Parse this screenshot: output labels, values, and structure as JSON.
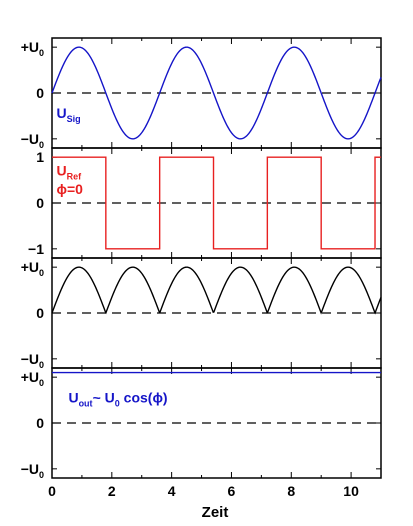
{
  "chart_data": {
    "type": "line",
    "xlabel": "Zeit",
    "xlim": [
      0,
      11
    ],
    "xticks": [
      0,
      2,
      4,
      6,
      8,
      10
    ],
    "grid": false,
    "panels": [
      {
        "id": "signal",
        "ylim": [
          -1.2,
          1.2
        ],
        "ytick_labels": [
          {
            "value": 1,
            "main": "+U",
            "sub": "0"
          },
          {
            "value": 0,
            "main": "0",
            "sub": ""
          },
          {
            "value": -1,
            "main": "−U",
            "sub": "0"
          }
        ],
        "label": {
          "main": "U",
          "sub": "Sig",
          "x": 0.15,
          "y": -0.55
        },
        "label_color": "#1515c8",
        "series": [
          {
            "function": "sin",
            "period": 3.6,
            "amplitude": 1,
            "color": "#1515c8"
          }
        ]
      },
      {
        "id": "reference",
        "ylim": [
          -1.2,
          1.2
        ],
        "ytick_labels": [
          {
            "value": 1,
            "main": "1",
            "sub": ""
          },
          {
            "value": 0,
            "main": "0",
            "sub": ""
          },
          {
            "value": -1,
            "main": "−1",
            "sub": ""
          }
        ],
        "label": {
          "main": "U",
          "sub": "Ref",
          "x": 0.15,
          "y": 0.6
        },
        "label2": {
          "text": "ϕ=0",
          "x": 0.15,
          "y": 0.2
        },
        "label_color": "#e82020",
        "series": [
          {
            "function": "square",
            "period": 3.6,
            "amplitude": 1,
            "color": "#e82020"
          }
        ]
      },
      {
        "id": "product",
        "ylim": [
          -1.2,
          1.2
        ],
        "ytick_labels": [
          {
            "value": 1,
            "main": "+U",
            "sub": "0"
          },
          {
            "value": 0,
            "main": "0",
            "sub": ""
          },
          {
            "value": -1,
            "main": "−U",
            "sub": "0"
          }
        ],
        "series": [
          {
            "function": "abs_sin",
            "period": 3.6,
            "amplitude": 1,
            "color": "#000000"
          }
        ]
      },
      {
        "id": "output",
        "ylim": [
          -1.2,
          1.2
        ],
        "ytick_labels": [
          {
            "value": 1,
            "main": "+U",
            "sub": "0"
          },
          {
            "value": 0,
            "main": "0",
            "sub": ""
          },
          {
            "value": -1,
            "main": "−U",
            "sub": "0"
          }
        ],
        "label": {
          "main": "U",
          "sub": "out",
          "rest": "~ U",
          "sub2": "0",
          "rest2": " cos(ϕ)",
          "x": 0.55,
          "y": 0.45
        },
        "label_color": "#1515c8",
        "series": [
          {
            "function": "const",
            "value": 1.1,
            "color": "#1515c8"
          }
        ]
      }
    ]
  }
}
